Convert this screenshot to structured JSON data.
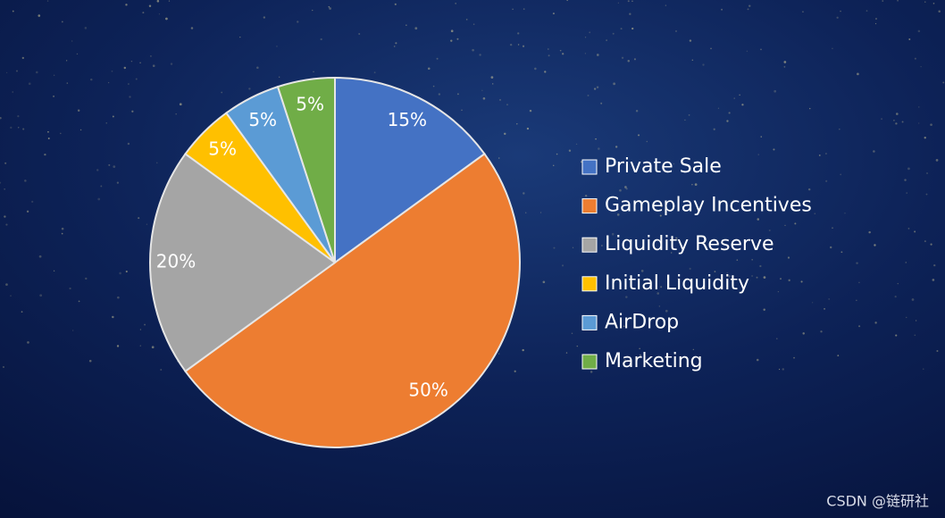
{
  "chart_data": {
    "type": "pie",
    "categories": [
      "Private Sale",
      "Gameplay Incentives",
      "Liquidity Reserve",
      "Initial Liquidity",
      "AirDrop",
      "Marketing"
    ],
    "values": [
      15,
      50,
      20,
      5,
      5,
      5
    ],
    "value_labels": [
      "15%",
      "50%",
      "20%",
      "5%",
      "5%",
      "5%"
    ],
    "colors": [
      "#4472c4",
      "#ed7d31",
      "#a5a5a5",
      "#ffc000",
      "#5b9bd5",
      "#70ad47"
    ],
    "legend": "right"
  },
  "watermark": "CSDN @链研社"
}
